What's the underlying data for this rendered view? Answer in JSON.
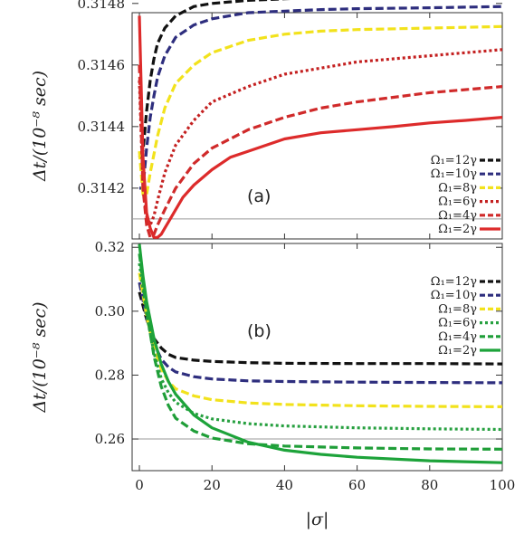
{
  "chart_data": [
    {
      "type": "line",
      "panel_label": "(a)",
      "ylabel": "Δt/(10⁻⁸ sec)",
      "xlim": [
        -2,
        100
      ],
      "ylim": [
        0.314035,
        0.31477
      ],
      "y_ticks": [
        "0.3142",
        "0.3144",
        "0.3146",
        "0.3148"
      ],
      "y_tick_values": [
        0.3142,
        0.3144,
        0.3146,
        0.3148
      ],
      "reference_line": 0.3141,
      "legend_position": "right",
      "series": [
        {
          "name": "Ω₁=12γ",
          "color": "#111111",
          "style": "dash",
          "x": [
            0,
            1,
            2,
            3,
            4,
            5,
            7,
            10,
            15,
            20,
            30,
            40,
            50,
            60,
            80,
            100
          ],
          "y": [
            0.3143,
            0.31432,
            0.31445,
            0.31455,
            0.31462,
            0.31467,
            0.31472,
            0.31476,
            0.31479,
            0.3148,
            0.31481,
            0.314815,
            0.31482,
            0.314822,
            0.314825,
            0.314828
          ]
        },
        {
          "name": "Ω₁=10γ",
          "color": "#2e2e7e",
          "style": "dash",
          "x": [
            0,
            1,
            2,
            3,
            4,
            5,
            7,
            10,
            15,
            20,
            30,
            40,
            50,
            60,
            80,
            100
          ],
          "y": [
            0.3142,
            0.3142,
            0.31433,
            0.31443,
            0.3145,
            0.31456,
            0.31463,
            0.31469,
            0.31473,
            0.31475,
            0.31477,
            0.314775,
            0.31478,
            0.314783,
            0.314786,
            0.31479
          ]
        },
        {
          "name": "Ω₁=8γ",
          "color": "#f2e21c",
          "style": "dash",
          "x": [
            0,
            1,
            2,
            3,
            4,
            5,
            7,
            10,
            15,
            20,
            30,
            40,
            50,
            60,
            80,
            100
          ],
          "y": [
            0.31432,
            0.31418,
            0.31418,
            0.31425,
            0.31431,
            0.31437,
            0.31446,
            0.31454,
            0.3146,
            0.31464,
            0.31468,
            0.3147,
            0.31471,
            0.314715,
            0.31472,
            0.314725
          ]
        },
        {
          "name": "Ω₁=6γ",
          "color": "#c42020",
          "style": "dot",
          "x": [
            0,
            1,
            2,
            3,
            4,
            5,
            7,
            10,
            15,
            20,
            30,
            40,
            50,
            60,
            80,
            100
          ],
          "y": [
            0.31455,
            0.3142,
            0.31411,
            0.31408,
            0.31411,
            0.31416,
            0.31425,
            0.31434,
            0.31442,
            0.31448,
            0.31453,
            0.31457,
            0.31459,
            0.31461,
            0.31463,
            0.31465
          ]
        },
        {
          "name": "Ω₁=4γ",
          "color": "#d02a2a",
          "style": "dash",
          "x": [
            0,
            1,
            2,
            3,
            4,
            5,
            7,
            10,
            15,
            20,
            30,
            40,
            50,
            60,
            80,
            100
          ],
          "y": [
            0.3146,
            0.3142,
            0.31408,
            0.31404,
            0.31405,
            0.31408,
            0.31413,
            0.3142,
            0.31428,
            0.31433,
            0.31439,
            0.31443,
            0.31446,
            0.31448,
            0.31451,
            0.31453
          ]
        },
        {
          "name": "Ω₁=2γ",
          "color": "#dd2b2b",
          "style": "solid",
          "x": [
            0,
            1,
            2,
            3,
            4,
            5,
            6,
            7,
            8,
            10,
            12,
            15,
            20,
            25,
            30,
            40,
            50,
            60,
            70,
            80,
            90,
            100
          ],
          "y": [
            0.31476,
            0.3143,
            0.31412,
            0.31407,
            0.31404,
            0.31404,
            0.31405,
            0.31407,
            0.31409,
            0.31413,
            0.31417,
            0.31421,
            0.31426,
            0.3143,
            0.31432,
            0.31436,
            0.31438,
            0.31439,
            0.3144,
            0.314412,
            0.31442,
            0.31443
          ]
        }
      ]
    },
    {
      "type": "line",
      "panel_label": "(b)",
      "ylabel": "Δt/(10⁻⁸ sec)",
      "xlabel": "|σ|",
      "xlim": [
        -2,
        100
      ],
      "ylim": [
        0.2501,
        0.3212
      ],
      "y_ticks": [
        "0.26",
        "0.28",
        "0.30",
        "0.32"
      ],
      "y_tick_values": [
        0.26,
        0.28,
        0.3,
        0.32
      ],
      "x_ticks": [
        "0",
        "20",
        "40",
        "60",
        "80",
        "100"
      ],
      "x_tick_values": [
        0,
        20,
        40,
        60,
        80,
        100
      ],
      "reference_line": 0.26,
      "legend_position": "right",
      "series": [
        {
          "name": "Ω₁=12γ",
          "color": "#111111",
          "style": "dash",
          "x": [
            0,
            2,
            4,
            6,
            8,
            10,
            15,
            20,
            30,
            40,
            60,
            80,
            100
          ],
          "y": [
            0.306,
            0.2975,
            0.2915,
            0.2885,
            0.2865,
            0.2855,
            0.2847,
            0.2843,
            0.2839,
            0.2837,
            0.2836,
            0.2836,
            0.2835
          ]
        },
        {
          "name": "Ω₁=10γ",
          "color": "#2e2e7e",
          "style": "dash",
          "x": [
            0,
            2,
            4,
            6,
            8,
            10,
            15,
            20,
            30,
            40,
            60,
            80,
            100
          ],
          "y": [
            0.309,
            0.298,
            0.29,
            0.285,
            0.2825,
            0.281,
            0.2795,
            0.2788,
            0.2782,
            0.278,
            0.2778,
            0.2777,
            0.2776
          ]
        },
        {
          "name": "Ω₁=8γ",
          "color": "#f2e21c",
          "style": "dash",
          "x": [
            0,
            2,
            4,
            6,
            8,
            10,
            15,
            20,
            30,
            40,
            60,
            80,
            100
          ],
          "y": [
            0.312,
            0.2985,
            0.2885,
            0.282,
            0.278,
            0.2757,
            0.2735,
            0.2723,
            0.2713,
            0.2708,
            0.2704,
            0.2702,
            0.2701
          ]
        },
        {
          "name": "Ω₁=6γ",
          "color": "#27a040",
          "style": "dot",
          "x": [
            0,
            2,
            4,
            6,
            8,
            10,
            15,
            20,
            30,
            40,
            60,
            80,
            100
          ],
          "y": [
            0.315,
            0.299,
            0.287,
            0.279,
            0.2745,
            0.2715,
            0.268,
            0.2663,
            0.2648,
            0.2641,
            0.2635,
            0.2632,
            0.263
          ]
        },
        {
          "name": "Ω₁=4γ",
          "color": "#1f9e38",
          "style": "dash",
          "x": [
            0,
            2,
            4,
            6,
            8,
            10,
            15,
            20,
            30,
            40,
            60,
            80,
            100
          ],
          "y": [
            0.318,
            0.3,
            0.286,
            0.2765,
            0.2705,
            0.2665,
            0.2625,
            0.2603,
            0.2585,
            0.2578,
            0.2572,
            0.2569,
            0.2568
          ]
        },
        {
          "name": "Ω₁=2γ",
          "color": "#1da33a",
          "style": "solid",
          "x": [
            0,
            1,
            2,
            4,
            6,
            8,
            10,
            15,
            20,
            30,
            40,
            50,
            60,
            80,
            100
          ],
          "y": [
            0.321,
            0.311,
            0.303,
            0.2915,
            0.2835,
            0.278,
            0.274,
            0.2675,
            0.2635,
            0.259,
            0.2565,
            0.2552,
            0.2543,
            0.2532,
            0.2526
          ]
        }
      ]
    }
  ]
}
